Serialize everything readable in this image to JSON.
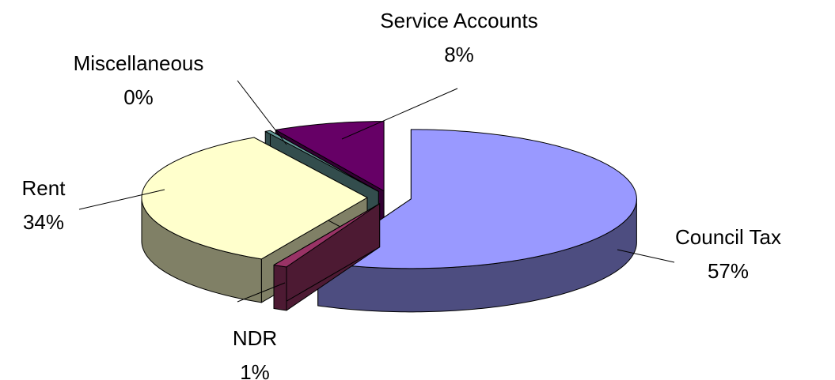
{
  "chart_data": {
    "type": "pie3d",
    "categories": [
      "Council Tax",
      "NDR",
      "Rent",
      "Miscellaneous",
      "Service Accounts"
    ],
    "values": [
      57,
      1,
      34,
      0.4,
      8
    ],
    "value_labels": [
      "57%",
      "1%",
      "34%",
      "0%",
      "8%"
    ],
    "colors": [
      "#9999ff",
      "#993366",
      "#ffffcc",
      "#669999",
      "#660066"
    ]
  }
}
